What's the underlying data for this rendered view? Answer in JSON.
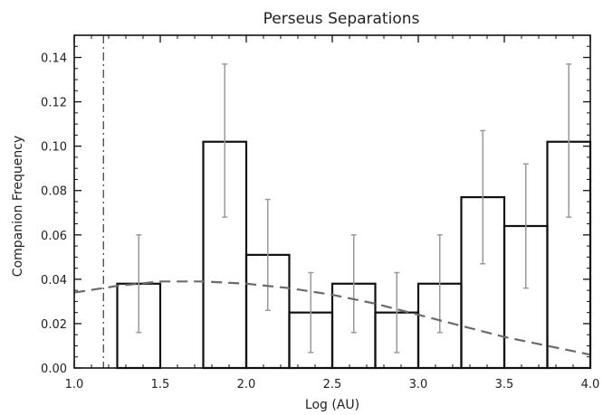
{
  "chart_data": {
    "type": "bar",
    "title": "Perseus Separations",
    "xlabel": "Log (AU)",
    "ylabel": "Companion Frequency",
    "xlim": [
      1.0,
      4.0
    ],
    "ylim": [
      0.0,
      0.15
    ],
    "xticks": [
      "1.0",
      "1.5",
      "2.0",
      "2.5",
      "3.0",
      "3.5",
      "4.0"
    ],
    "yticks": [
      "0.00",
      "0.02",
      "0.04",
      "0.06",
      "0.08",
      "0.10",
      "0.12",
      "0.14"
    ],
    "bins": [
      {
        "x0": 1.25,
        "x1": 1.5,
        "value": 0.038,
        "err_low": 0.016,
        "err_high": 0.06
      },
      {
        "x0": 1.75,
        "x1": 2.0,
        "value": 0.102,
        "err_low": 0.068,
        "err_high": 0.137
      },
      {
        "x0": 2.0,
        "x1": 2.25,
        "value": 0.051,
        "err_low": 0.026,
        "err_high": 0.076
      },
      {
        "x0": 2.25,
        "x1": 2.5,
        "value": 0.025,
        "err_low": 0.007,
        "err_high": 0.043
      },
      {
        "x0": 2.5,
        "x1": 2.75,
        "value": 0.038,
        "err_low": 0.016,
        "err_high": 0.06
      },
      {
        "x0": 2.75,
        "x1": 3.0,
        "value": 0.025,
        "err_low": 0.007,
        "err_high": 0.043
      },
      {
        "x0": 3.0,
        "x1": 3.25,
        "value": 0.038,
        "err_low": 0.016,
        "err_high": 0.06
      },
      {
        "x0": 3.25,
        "x1": 3.5,
        "value": 0.077,
        "err_low": 0.047,
        "err_high": 0.107
      },
      {
        "x0": 3.5,
        "x1": 3.75,
        "value": 0.064,
        "err_low": 0.036,
        "err_high": 0.092
      },
      {
        "x0": 3.75,
        "x1": 4.0,
        "value": 0.102,
        "err_low": 0.068,
        "err_high": 0.137
      }
    ],
    "reference_line": {
      "x": 1.17,
      "style": "dash-dot"
    },
    "curve": {
      "style": "dashed",
      "x": [
        1.0,
        1.25,
        1.5,
        1.75,
        2.0,
        2.25,
        2.5,
        2.75,
        3.0,
        3.25,
        3.5,
        3.75,
        4.0
      ],
      "y": [
        0.034,
        0.037,
        0.039,
        0.039,
        0.038,
        0.036,
        0.033,
        0.029,
        0.024,
        0.019,
        0.014,
        0.01,
        0.006
      ]
    },
    "grid": false,
    "colors": {
      "bars": "#111111",
      "errorbars": "#9a9a9a",
      "curve": "#6b6b6b",
      "axes": "#111111"
    }
  }
}
